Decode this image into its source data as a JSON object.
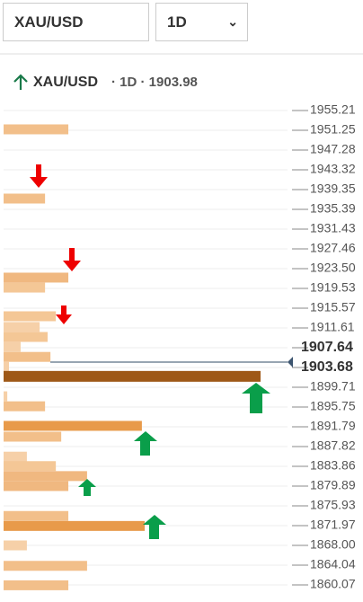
{
  "controls": {
    "symbol": "XAU/USD",
    "timeframe": "1D"
  },
  "chart_data": {
    "type": "bar",
    "orientation": "horizontal",
    "title": "XAU/USD",
    "subtitle": "· 1D · 1903.98",
    "y": [
      1951.43,
      1937.55,
      1921.7,
      1919.7,
      1913.95,
      1911.8,
      1909.8,
      1907.8,
      1905.8,
      1903.9,
      1901.9,
      1897.9,
      1895.9,
      1891.97,
      1889.8,
      1885.8,
      1883.9,
      1881.9,
      1879.9,
      1873.9,
      1871.9,
      1868.0,
      1863.9,
      1860.0
    ],
    "values": [
      22.8,
      14.6,
      22.8,
      14.6,
      18.4,
      12.7,
      15.5,
      6.0,
      16.5,
      1.9,
      90.5,
      1.3,
      14.6,
      48.7,
      20.3,
      8.2,
      18.4,
      29.4,
      22.8,
      22.8,
      49.7,
      8.2,
      29.4,
      22.8
    ],
    "colors": [
      "#f2bf8a",
      "#f2bf8a",
      "#f0b880",
      "#f4c796",
      "#f4c796",
      "#f6d0a8",
      "#f4c796",
      "#f6d0a8",
      "#f2bf8a",
      "#f6d0a8",
      "#9e5817",
      "#f6d0a8",
      "#f2bf8a",
      "#e89a4a",
      "#f2bf8a",
      "#f6d0a8",
      "#f4c796",
      "#f0b880",
      "#f0b880",
      "#f2bf8a",
      "#e89a4a",
      "#f6d0a8",
      "#f2bf8a",
      "#f2bf8a"
    ],
    "xlim": [
      0,
      100
    ],
    "ylim": [
      1858.09,
      1957.19
    ],
    "yticks": [
      1955.21,
      1951.25,
      1947.28,
      1943.32,
      1939.35,
      1935.39,
      1931.43,
      1927.46,
      {
        "value": 1923.5,
        "label": "1923.50"
      },
      1919.53,
      1915.57,
      1911.61,
      1907.64,
      1903.68,
      1899.71,
      1895.75,
      1891.79,
      1887.82,
      1883.86,
      1879.89,
      1875.93,
      1871.97,
      {
        "value": 1868.0,
        "label": "1868.00"
      },
      1864.04,
      1860.07
    ],
    "price_line": 1903.68,
    "grid": true
  }
}
